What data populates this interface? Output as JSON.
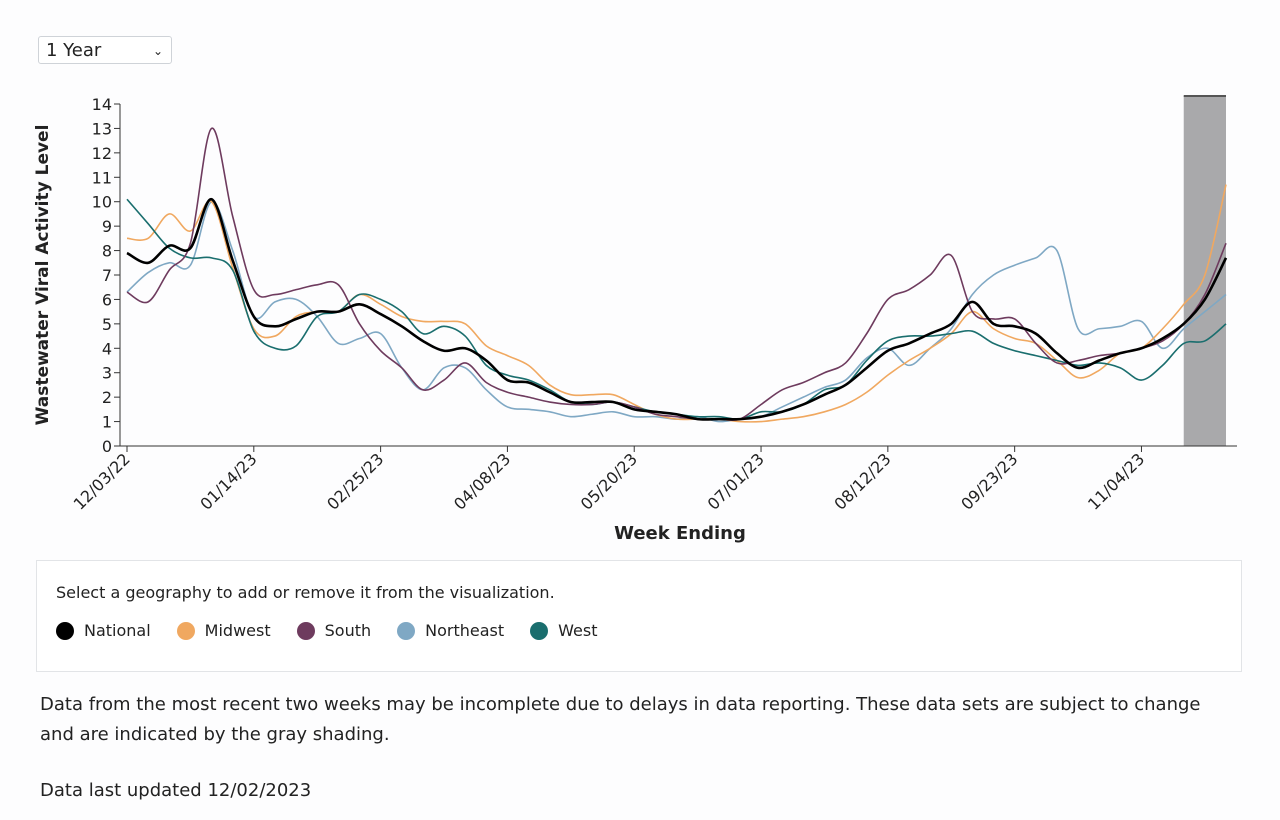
{
  "controls": {
    "range": "1 Year"
  },
  "chart_data": {
    "type": "line",
    "xlabel": "Week Ending",
    "ylabel": "Wastewater Viral Activity Level",
    "x": [
      "12/03/22",
      "12/10/22",
      "12/17/22",
      "12/24/22",
      "12/31/22",
      "01/07/23",
      "01/14/23",
      "01/21/23",
      "01/28/23",
      "02/04/23",
      "02/11/23",
      "02/18/23",
      "02/25/23",
      "03/04/23",
      "03/11/23",
      "03/18/23",
      "03/25/23",
      "04/01/23",
      "04/08/23",
      "04/15/23",
      "04/22/23",
      "04/29/23",
      "05/06/23",
      "05/13/23",
      "05/20/23",
      "05/27/23",
      "06/03/23",
      "06/10/23",
      "06/17/23",
      "06/24/23",
      "07/01/23",
      "07/08/23",
      "07/15/23",
      "07/22/23",
      "07/29/23",
      "08/05/23",
      "08/12/23",
      "08/19/23",
      "08/26/23",
      "09/02/23",
      "09/09/23",
      "09/16/23",
      "09/23/23",
      "09/30/23",
      "10/07/23",
      "10/14/23",
      "10/21/23",
      "10/28/23",
      "11/04/23",
      "11/11/23",
      "11/18/23",
      "11/25/23",
      "12/02/23"
    ],
    "xticks": [
      "12/03/22",
      "01/14/23",
      "02/25/23",
      "04/08/23",
      "05/20/23",
      "07/01/23",
      "08/12/23",
      "09/23/23",
      "11/04/23"
    ],
    "ylim": [
      0,
      14
    ],
    "yticks": [
      0,
      1,
      2,
      3,
      4,
      5,
      6,
      7,
      8,
      9,
      10,
      11,
      12,
      13,
      14
    ],
    "shaded": [
      "11/18/23",
      "12/02/23"
    ],
    "shade_color": "#a9a9ab",
    "series": [
      {
        "name": "National",
        "color": "#000000",
        "values": [
          7.9,
          7.5,
          8.2,
          8.1,
          10.1,
          7.6,
          5.3,
          4.9,
          5.2,
          5.5,
          5.5,
          5.8,
          5.4,
          4.9,
          4.3,
          3.9,
          4.0,
          3.5,
          2.7,
          2.6,
          2.2,
          1.8,
          1.8,
          1.8,
          1.5,
          1.4,
          1.3,
          1.1,
          1.1,
          1.1,
          1.2,
          1.4,
          1.7,
          2.1,
          2.5,
          3.2,
          3.9,
          4.2,
          4.6,
          5.0,
          5.9,
          5.0,
          4.9,
          4.6,
          3.8,
          3.2,
          3.5,
          3.8,
          4.0,
          4.4,
          5.0,
          6.0,
          7.7
        ]
      },
      {
        "name": "Midwest",
        "color": "#f0a860",
        "values": [
          8.5,
          8.5,
          9.5,
          8.8,
          10.0,
          7.3,
          4.8,
          4.5,
          5.3,
          5.5,
          5.5,
          6.2,
          5.8,
          5.3,
          5.1,
          5.1,
          5.0,
          4.1,
          3.7,
          3.3,
          2.5,
          2.1,
          2.1,
          2.1,
          1.7,
          1.3,
          1.1,
          1.1,
          1.1,
          1.0,
          1.0,
          1.1,
          1.2,
          1.4,
          1.7,
          2.2,
          2.9,
          3.5,
          4.0,
          4.6,
          5.5,
          4.8,
          4.4,
          4.2,
          3.5,
          2.8,
          3.1,
          3.8,
          4.0,
          4.8,
          5.8,
          7.0,
          10.7
        ]
      },
      {
        "name": "South",
        "color": "#6e3b5e",
        "values": [
          6.3,
          5.9,
          7.2,
          8.3,
          13.0,
          9.4,
          6.4,
          6.2,
          6.4,
          6.6,
          6.6,
          5.0,
          3.9,
          3.2,
          2.3,
          2.7,
          3.4,
          2.6,
          2.2,
          2.0,
          1.8,
          1.7,
          1.7,
          1.8,
          1.6,
          1.3,
          1.2,
          1.1,
          1.1,
          1.1,
          1.7,
          2.3,
          2.6,
          3.0,
          3.4,
          4.6,
          6.0,
          6.4,
          7.0,
          7.8,
          5.5,
          5.2,
          5.2,
          4.2,
          3.4,
          3.5,
          3.7,
          3.8,
          4.0,
          4.3,
          5.0,
          6.2,
          8.3
        ]
      },
      {
        "name": "Northeast",
        "color": "#7fa8c4",
        "values": [
          6.3,
          7.1,
          7.5,
          7.4,
          10.0,
          8.0,
          5.3,
          5.9,
          6.0,
          5.3,
          4.2,
          4.4,
          4.6,
          3.2,
          2.3,
          3.2,
          3.2,
          2.3,
          1.6,
          1.5,
          1.4,
          1.2,
          1.3,
          1.4,
          1.2,
          1.2,
          1.1,
          1.2,
          1.0,
          1.1,
          1.2,
          1.6,
          2.0,
          2.4,
          2.7,
          3.6,
          4.0,
          3.3,
          4.0,
          4.8,
          6.2,
          7.0,
          7.4,
          7.7,
          8.0,
          4.8,
          4.8,
          4.9,
          5.1,
          4.0,
          4.8,
          5.5,
          6.2
        ]
      },
      {
        "name": "West",
        "color": "#1a6e6e",
        "values": [
          10.1,
          9.1,
          8.1,
          7.7,
          7.7,
          7.2,
          4.7,
          4.0,
          4.1,
          5.3,
          5.5,
          6.2,
          6.0,
          5.5,
          4.6,
          4.9,
          4.5,
          3.3,
          2.9,
          2.7,
          2.3,
          1.8,
          1.7,
          1.8,
          1.6,
          1.4,
          1.3,
          1.2,
          1.2,
          1.1,
          1.4,
          1.4,
          1.7,
          2.3,
          2.5,
          3.5,
          4.3,
          4.5,
          4.5,
          4.6,
          4.7,
          4.2,
          3.9,
          3.7,
          3.5,
          3.3,
          3.4,
          3.2,
          2.7,
          3.3,
          4.2,
          4.3,
          5.0
        ]
      }
    ]
  },
  "legend_prompt": "Select a geography to add or remove it from the visualization.",
  "notes": [
    "Data from the most recent two weeks may be incomplete due to delays in data reporting. These data sets are subject to change and are indicated by the gray shading.",
    "Data last updated 12/02/2023"
  ]
}
